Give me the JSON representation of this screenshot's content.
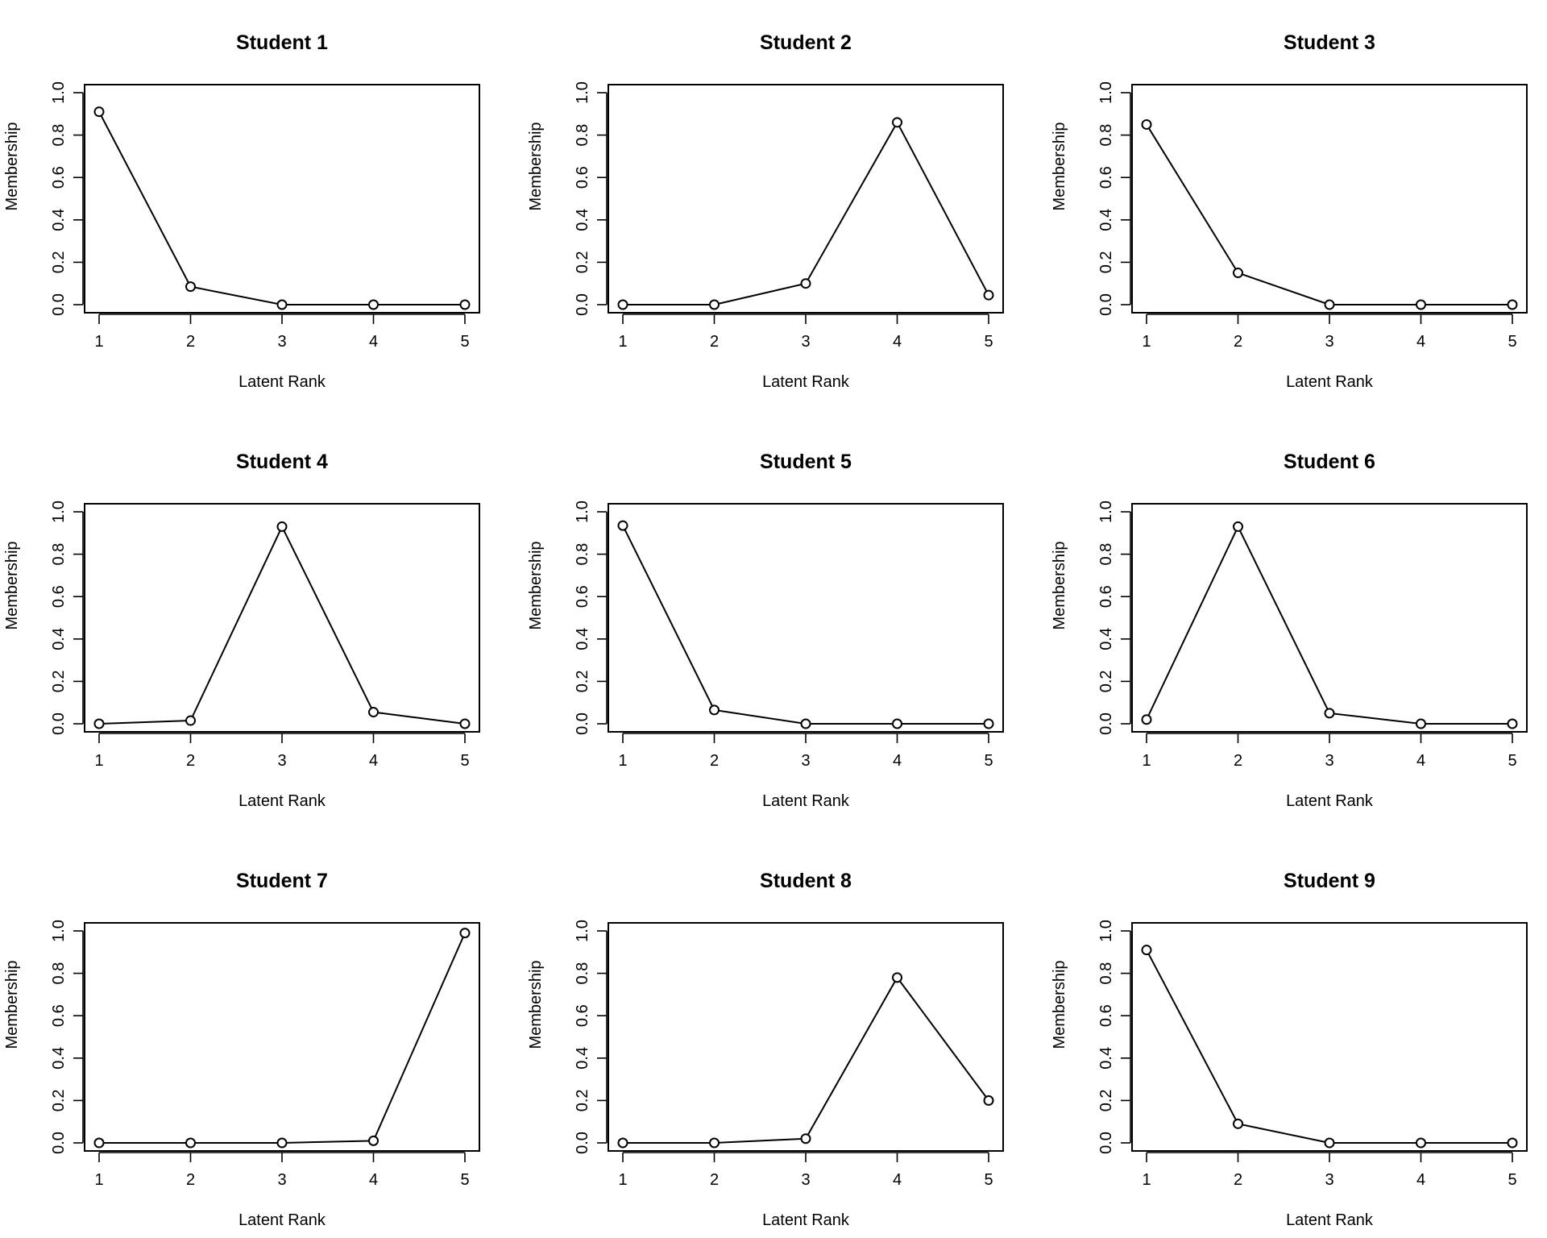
{
  "chart_data": [
    {
      "type": "line",
      "title": "Student 1",
      "xlabel": "Latent Rank",
      "ylabel": "Membership",
      "x": [
        1,
        2,
        3,
        4,
        5
      ],
      "values": [
        0.91,
        0.085,
        0.0,
        0.0,
        0.0
      ],
      "xlim": [
        1,
        5
      ],
      "ylim": [
        0,
        1
      ],
      "x_ticks": [
        "1",
        "2",
        "3",
        "4",
        "5"
      ],
      "y_ticks": [
        "0.0",
        "0.2",
        "0.4",
        "0.6",
        "0.8",
        "1.0"
      ],
      "grid": false,
      "marker": "open-circle"
    },
    {
      "type": "line",
      "title": "Student 2",
      "xlabel": "Latent Rank",
      "ylabel": "Membership",
      "x": [
        1,
        2,
        3,
        4,
        5
      ],
      "values": [
        0.0,
        0.0,
        0.1,
        0.86,
        0.045
      ],
      "xlim": [
        1,
        5
      ],
      "ylim": [
        0,
        1
      ],
      "x_ticks": [
        "1",
        "2",
        "3",
        "4",
        "5"
      ],
      "y_ticks": [
        "0.0",
        "0.2",
        "0.4",
        "0.6",
        "0.8",
        "1.0"
      ],
      "grid": false,
      "marker": "open-circle"
    },
    {
      "type": "line",
      "title": "Student 3",
      "xlabel": "Latent Rank",
      "ylabel": "Membership",
      "x": [
        1,
        2,
        3,
        4,
        5
      ],
      "values": [
        0.85,
        0.15,
        0.0,
        0.0,
        0.0
      ],
      "xlim": [
        1,
        5
      ],
      "ylim": [
        0,
        1
      ],
      "x_ticks": [
        "1",
        "2",
        "3",
        "4",
        "5"
      ],
      "y_ticks": [
        "0.0",
        "0.2",
        "0.4",
        "0.6",
        "0.8",
        "1.0"
      ],
      "grid": false,
      "marker": "open-circle"
    },
    {
      "type": "line",
      "title": "Student 4",
      "xlabel": "Latent Rank",
      "ylabel": "Membership",
      "x": [
        1,
        2,
        3,
        4,
        5
      ],
      "values": [
        0.0,
        0.015,
        0.93,
        0.055,
        0.0
      ],
      "xlim": [
        1,
        5
      ],
      "ylim": [
        0,
        1
      ],
      "x_ticks": [
        "1",
        "2",
        "3",
        "4",
        "5"
      ],
      "y_ticks": [
        "0.0",
        "0.2",
        "0.4",
        "0.6",
        "0.8",
        "1.0"
      ],
      "grid": false,
      "marker": "open-circle"
    },
    {
      "type": "line",
      "title": "Student 5",
      "xlabel": "Latent Rank",
      "ylabel": "Membership",
      "x": [
        1,
        2,
        3,
        4,
        5
      ],
      "values": [
        0.935,
        0.065,
        0.0,
        0.0,
        0.0
      ],
      "xlim": [
        1,
        5
      ],
      "ylim": [
        0,
        1
      ],
      "x_ticks": [
        "1",
        "2",
        "3",
        "4",
        "5"
      ],
      "y_ticks": [
        "0.0",
        "0.2",
        "0.4",
        "0.6",
        "0.8",
        "1.0"
      ],
      "grid": false,
      "marker": "open-circle"
    },
    {
      "type": "line",
      "title": "Student 6",
      "xlabel": "Latent Rank",
      "ylabel": "Membership",
      "x": [
        1,
        2,
        3,
        4,
        5
      ],
      "values": [
        0.02,
        0.93,
        0.05,
        0.0,
        0.0
      ],
      "xlim": [
        1,
        5
      ],
      "ylim": [
        0,
        1
      ],
      "x_ticks": [
        "1",
        "2",
        "3",
        "4",
        "5"
      ],
      "y_ticks": [
        "0.0",
        "0.2",
        "0.4",
        "0.6",
        "0.8",
        "1.0"
      ],
      "grid": false,
      "marker": "open-circle"
    },
    {
      "type": "line",
      "title": "Student 7",
      "xlabel": "Latent Rank",
      "ylabel": "Membership",
      "x": [
        1,
        2,
        3,
        4,
        5
      ],
      "values": [
        0.0,
        0.0,
        0.0,
        0.01,
        0.99
      ],
      "xlim": [
        1,
        5
      ],
      "ylim": [
        0,
        1
      ],
      "x_ticks": [
        "1",
        "2",
        "3",
        "4",
        "5"
      ],
      "y_ticks": [
        "0.0",
        "0.2",
        "0.4",
        "0.6",
        "0.8",
        "1.0"
      ],
      "grid": false,
      "marker": "open-circle"
    },
    {
      "type": "line",
      "title": "Student 8",
      "xlabel": "Latent Rank",
      "ylabel": "Membership",
      "x": [
        1,
        2,
        3,
        4,
        5
      ],
      "values": [
        0.0,
        0.0,
        0.02,
        0.78,
        0.2
      ],
      "xlim": [
        1,
        5
      ],
      "ylim": [
        0,
        1
      ],
      "x_ticks": [
        "1",
        "2",
        "3",
        "4",
        "5"
      ],
      "y_ticks": [
        "0.0",
        "0.2",
        "0.4",
        "0.6",
        "0.8",
        "1.0"
      ],
      "grid": false,
      "marker": "open-circle"
    },
    {
      "type": "line",
      "title": "Student 9",
      "xlabel": "Latent Rank",
      "ylabel": "Membership",
      "x": [
        1,
        2,
        3,
        4,
        5
      ],
      "values": [
        0.91,
        0.09,
        0.0,
        0.0,
        0.0
      ],
      "xlim": [
        1,
        5
      ],
      "ylim": [
        0,
        1
      ],
      "x_ticks": [
        "1",
        "2",
        "3",
        "4",
        "5"
      ],
      "y_ticks": [
        "0.0",
        "0.2",
        "0.4",
        "0.6",
        "0.8",
        "1.0"
      ],
      "grid": false,
      "marker": "open-circle"
    }
  ]
}
